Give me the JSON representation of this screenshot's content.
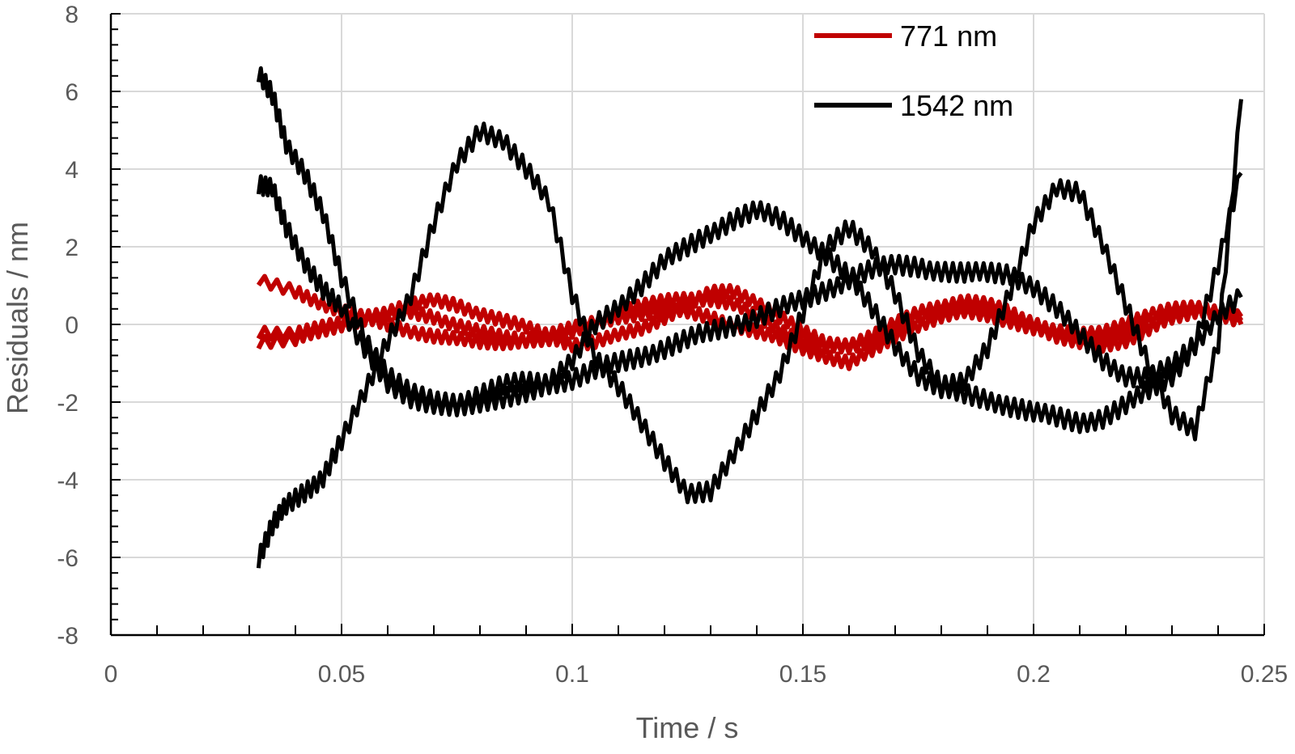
{
  "chart_data": {
    "type": "line",
    "title": "",
    "xlabel": "Time / s",
    "ylabel": "Residuals / nm",
    "xlim": [
      0,
      0.25
    ],
    "ylim": [
      -8,
      8
    ],
    "x_ticks": [
      "0",
      "0.05",
      "0.1",
      "0.15",
      "0.2",
      "0.25"
    ],
    "y_ticks": [
      "8",
      "6",
      "4",
      "2",
      "0",
      "-2",
      "-4",
      "-6",
      "-8"
    ],
    "grid": true,
    "legend_position": "top-right",
    "legend": [
      {
        "label": "771 nm",
        "color": "#c00000"
      },
      {
        "label": "1542 nm",
        "color": "#000000"
      }
    ],
    "series": [
      {
        "group": "771 nm",
        "color": "#c00000",
        "x": [
          0.032,
          0.04,
          0.045,
          0.05,
          0.055,
          0.06,
          0.065,
          0.07,
          0.075,
          0.08,
          0.085,
          0.09,
          0.095,
          0.1,
          0.105,
          0.11,
          0.115,
          0.12,
          0.125,
          0.13,
          0.135,
          0.14,
          0.145,
          0.15,
          0.155,
          0.16,
          0.165,
          0.17,
          0.175,
          0.18,
          0.185,
          0.19,
          0.195,
          0.2,
          0.205,
          0.21,
          0.215,
          0.22,
          0.225,
          0.23,
          0.235,
          0.24,
          0.245
        ],
        "y": [
          1.1,
          0.85,
          0.6,
          0.35,
          0.15,
          0.0,
          -0.15,
          -0.3,
          -0.4,
          -0.45,
          -0.45,
          -0.4,
          -0.3,
          -0.1,
          0.1,
          0.3,
          0.45,
          0.6,
          0.7,
          0.65,
          0.5,
          0.2,
          -0.1,
          -0.4,
          -0.6,
          -0.6,
          -0.4,
          -0.1,
          0.2,
          0.4,
          0.5,
          0.4,
          0.2,
          0.0,
          -0.2,
          -0.35,
          -0.35,
          -0.2,
          0.0,
          0.2,
          0.3,
          0.3,
          0.2
        ]
      },
      {
        "group": "771 nm",
        "color": "#c00000",
        "x": [
          0.032,
          0.04,
          0.045,
          0.05,
          0.055,
          0.06,
          0.065,
          0.07,
          0.075,
          0.08,
          0.085,
          0.09,
          0.095,
          0.1,
          0.105,
          0.11,
          0.115,
          0.12,
          0.125,
          0.13,
          0.135,
          0.14,
          0.145,
          0.15,
          0.155,
          0.16,
          0.165,
          0.17,
          0.175,
          0.18,
          0.185,
          0.19,
          0.195,
          0.2,
          0.205,
          0.21,
          0.215,
          0.22,
          0.225,
          0.23,
          0.235,
          0.24,
          0.245
        ],
        "y": [
          -0.2,
          -0.2,
          -0.1,
          0.0,
          0.2,
          0.35,
          0.5,
          0.6,
          0.5,
          0.3,
          0.1,
          -0.1,
          -0.3,
          -0.5,
          -0.45,
          -0.3,
          -0.1,
          0.2,
          0.5,
          0.8,
          0.85,
          0.6,
          0.2,
          -0.2,
          -0.5,
          -0.5,
          -0.3,
          0.0,
          0.3,
          0.5,
          0.6,
          0.5,
          0.3,
          0.0,
          -0.3,
          -0.5,
          -0.55,
          -0.4,
          -0.1,
          0.2,
          0.4,
          0.3,
          0.1
        ]
      },
      {
        "group": "771 nm",
        "color": "#c00000",
        "x": [
          0.032,
          0.04,
          0.045,
          0.05,
          0.055,
          0.06,
          0.065,
          0.07,
          0.075,
          0.08,
          0.085,
          0.09,
          0.095,
          0.1,
          0.105,
          0.11,
          0.115,
          0.12,
          0.125,
          0.13,
          0.135,
          0.14,
          0.145,
          0.15,
          0.155,
          0.16,
          0.165,
          0.17,
          0.175,
          0.18,
          0.185,
          0.19,
          0.195,
          0.2,
          0.205,
          0.21,
          0.215,
          0.22,
          0.225,
          0.23,
          0.235,
          0.24,
          0.245
        ],
        "y": [
          -0.45,
          -0.4,
          -0.2,
          0.0,
          0.15,
          0.25,
          0.3,
          0.2,
          0.0,
          -0.2,
          -0.35,
          -0.4,
          -0.35,
          -0.2,
          0.0,
          0.2,
          0.3,
          0.35,
          0.3,
          0.2,
          0.0,
          -0.2,
          -0.4,
          -0.6,
          -0.8,
          -1.0,
          -0.7,
          -0.3,
          0.0,
          0.2,
          0.3,
          0.25,
          0.1,
          -0.1,
          -0.2,
          -0.25,
          -0.15,
          0.0,
          0.2,
          0.4,
          0.5,
          0.3,
          0.0
        ]
      },
      {
        "group": "1542 nm",
        "color": "#000000",
        "x": [
          0.032,
          0.035,
          0.038,
          0.042,
          0.046,
          0.05,
          0.055,
          0.06,
          0.065,
          0.07,
          0.075,
          0.08,
          0.085,
          0.09,
          0.095,
          0.1,
          0.105,
          0.11,
          0.115,
          0.12,
          0.125,
          0.13,
          0.135,
          0.14,
          0.145,
          0.15,
          0.155,
          0.16,
          0.165,
          0.17,
          0.175,
          0.18,
          0.185,
          0.19,
          0.195,
          0.2,
          0.205,
          0.21,
          0.215,
          0.22,
          0.225,
          0.23,
          0.235,
          0.24,
          0.245
        ],
        "y": [
          6.4,
          5.9,
          4.7,
          3.9,
          2.8,
          1.2,
          -0.3,
          -1.3,
          -1.8,
          -2.0,
          -2.0,
          -1.8,
          -1.6,
          -1.5,
          -1.5,
          -1.4,
          -1.2,
          -1.0,
          -0.8,
          -0.6,
          -0.4,
          -0.2,
          0.0,
          0.2,
          0.4,
          0.6,
          0.9,
          1.2,
          1.4,
          1.5,
          1.5,
          1.4,
          1.3,
          1.3,
          1.3,
          1.0,
          0.4,
          -0.3,
          -0.9,
          -1.3,
          -1.4,
          -1.1,
          -0.5,
          0.3,
          0.7
        ]
      },
      {
        "group": "1542 nm",
        "color": "#000000",
        "x": [
          0.032,
          0.035,
          0.038,
          0.042,
          0.046,
          0.05,
          0.055,
          0.06,
          0.065,
          0.07,
          0.075,
          0.08,
          0.085,
          0.09,
          0.095,
          0.1,
          0.105,
          0.11,
          0.115,
          0.12,
          0.125,
          0.13,
          0.135,
          0.14,
          0.145,
          0.15,
          0.155,
          0.16,
          0.165,
          0.17,
          0.175,
          0.18,
          0.185,
          0.19,
          0.195,
          0.2,
          0.205,
          0.21,
          0.215,
          0.22,
          0.225,
          0.23,
          0.235,
          0.24,
          0.245
        ],
        "y": [
          3.6,
          3.6,
          2.5,
          1.5,
          0.9,
          0.5,
          -0.6,
          -1.6,
          -1.9,
          -2.0,
          -2.1,
          -2.1,
          -1.9,
          -1.7,
          -1.5,
          -1.0,
          0.0,
          0.5,
          1.0,
          1.6,
          2.0,
          2.4,
          2.7,
          2.9,
          2.7,
          2.3,
          1.8,
          1.2,
          0.4,
          -0.5,
          -1.3,
          -1.7,
          -1.8,
          -1.9,
          -2.1,
          -2.3,
          -2.4,
          -2.5,
          -2.4,
          -2.1,
          -1.7,
          -1.3,
          -0.5,
          1.5,
          3.9
        ]
      },
      {
        "group": "1542 nm",
        "color": "#000000",
        "x": [
          0.032,
          0.035,
          0.038,
          0.042,
          0.046,
          0.05,
          0.055,
          0.06,
          0.065,
          0.07,
          0.075,
          0.08,
          0.085,
          0.09,
          0.095,
          0.1,
          0.105,
          0.11,
          0.115,
          0.12,
          0.125,
          0.13,
          0.135,
          0.14,
          0.145,
          0.15,
          0.155,
          0.16,
          0.165,
          0.17,
          0.175,
          0.18,
          0.185,
          0.19,
          0.195,
          0.2,
          0.205,
          0.21,
          0.215,
          0.22,
          0.225,
          0.23,
          0.235,
          0.24,
          0.245
        ],
        "y": [
          -6.0,
          -5.2,
          -4.7,
          -4.3,
          -3.9,
          -3.0,
          -1.8,
          -0.4,
          0.8,
          2.6,
          4.1,
          5.0,
          4.8,
          4.0,
          3.1,
          0.8,
          -0.8,
          -1.6,
          -2.6,
          -3.5,
          -4.3,
          -4.3,
          -3.4,
          -2.3,
          -1.2,
          0.3,
          1.9,
          2.5,
          2.0,
          0.8,
          -0.8,
          -1.6,
          -1.4,
          -0.6,
          0.8,
          2.6,
          3.6,
          3.4,
          2.0,
          0.5,
          -1.0,
          -2.3,
          -2.8,
          -0.5,
          5.8
        ]
      }
    ]
  }
}
